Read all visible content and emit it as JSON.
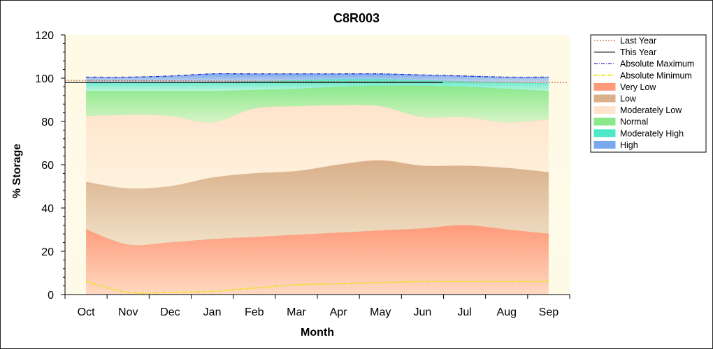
{
  "chart_data": {
    "type": "area",
    "title": "C8R003",
    "xlabel": "Month",
    "ylabel": "% Storage",
    "ylim": [
      0,
      120
    ],
    "yticks": [
      0,
      20,
      40,
      60,
      80,
      100,
      120
    ],
    "categories": [
      "Oct",
      "Nov",
      "Dec",
      "Jan",
      "Feb",
      "Mar",
      "Apr",
      "May",
      "Jun",
      "Jul",
      "Aug",
      "Sep"
    ],
    "legend_position": "right",
    "bands": [
      {
        "name": "Very Low",
        "color": "#ff9a7a",
        "lower": [
          0,
          0,
          0,
          0,
          0,
          0,
          0,
          0,
          0,
          0,
          0,
          0
        ],
        "upper": [
          30,
          23,
          24,
          25.5,
          26.5,
          27.5,
          28.5,
          29.5,
          30.5,
          32,
          30,
          28
        ]
      },
      {
        "name": "Low",
        "color": "#d9b08a",
        "lower": [
          30,
          23,
          24,
          25.5,
          26.5,
          27.5,
          28.5,
          29.5,
          30.5,
          32,
          30,
          28
        ],
        "upper": [
          52,
          49,
          50,
          54,
          56,
          57,
          60,
          62,
          59.5,
          59.5,
          58.5,
          56.5
        ]
      },
      {
        "name": "Moderately Low",
        "color": "#ffe4cc",
        "lower": [
          52,
          49,
          50,
          54,
          56,
          57,
          60,
          62,
          59.5,
          59.5,
          58.5,
          56.5
        ],
        "upper": [
          82.5,
          83,
          82.5,
          79.5,
          86,
          87,
          87.5,
          87,
          82,
          82,
          79.5,
          81
        ]
      },
      {
        "name": "Normal",
        "color": "#8be88b",
        "lower": [
          82.5,
          83,
          82.5,
          79.5,
          86,
          87,
          87.5,
          87,
          82,
          82,
          79.5,
          81
        ],
        "upper": [
          94,
          94,
          94,
          94,
          94.5,
          95,
          96,
          96.5,
          96.5,
          96,
          95,
          94
        ]
      },
      {
        "name": "Moderately High",
        "color": "#4fe8c8",
        "lower": [
          94,
          94,
          94,
          94,
          94.5,
          95,
          96,
          96.5,
          96.5,
          96,
          95,
          94
        ],
        "upper": [
          98,
          98,
          98,
          98,
          98.5,
          99,
          99.5,
          99.5,
          99,
          98.5,
          98,
          97.5
        ]
      },
      {
        "name": "High",
        "color": "#7aa8ee",
        "lower": [
          98,
          98,
          98,
          98,
          98.5,
          99,
          99.5,
          99.5,
          99,
          98.5,
          98,
          97.5
        ],
        "upper": [
          100.5,
          100.5,
          101,
          102,
          102,
          102,
          102,
          102,
          101.5,
          101,
          100.5,
          100.5
        ]
      }
    ],
    "series": [
      {
        "name": "Last Year",
        "color": "#c86a3c",
        "style": "dotted",
        "x": [
          "2023-10-01",
          "2024-09-30"
        ],
        "values": [
          99,
          98
        ]
      },
      {
        "name": "This Year",
        "color": "#000000",
        "style": "solid",
        "x": [
          "2023-10-01",
          "2024-07-01"
        ],
        "values": [
          98,
          98
        ]
      },
      {
        "name": "Absolute Maximum",
        "color": "#1a1acc",
        "style": "dashdot",
        "values": [
          100.5,
          100.5,
          101,
          102,
          102,
          102,
          102,
          102,
          101.5,
          101,
          100.5,
          100.5
        ]
      },
      {
        "name": "Absolute Minimum",
        "color": "#f0e020",
        "style": "dashdot",
        "values": [
          6,
          1,
          1,
          1.5,
          3,
          4.5,
          5,
          5.5,
          6,
          6,
          6,
          6
        ]
      }
    ]
  }
}
